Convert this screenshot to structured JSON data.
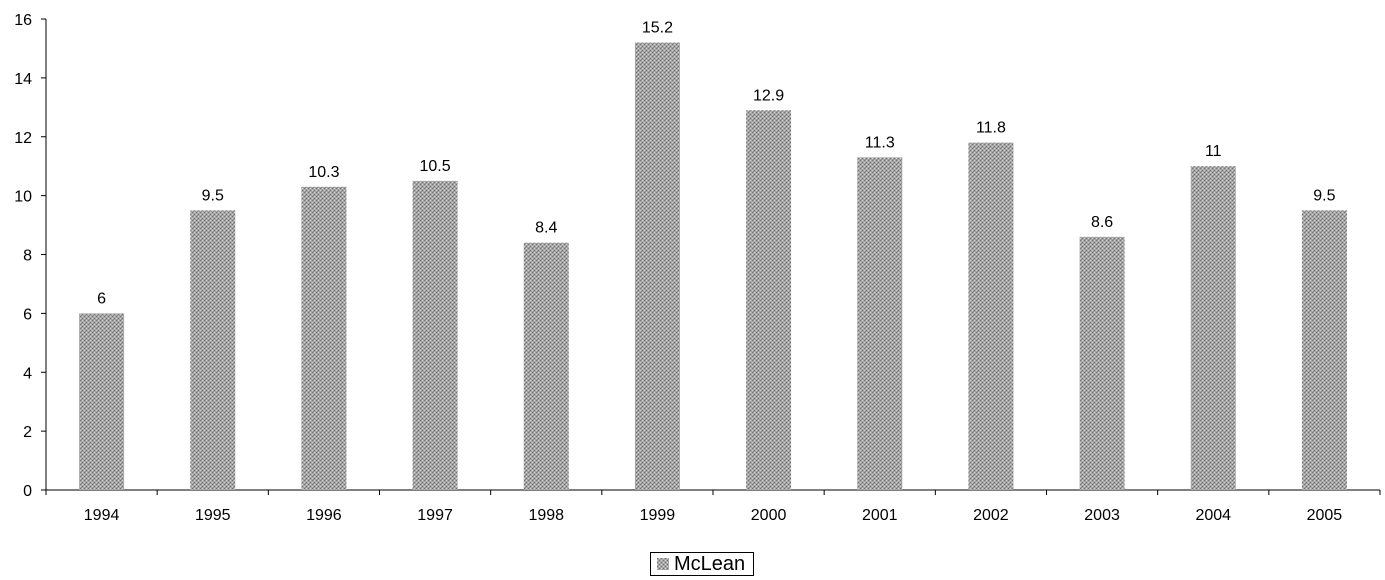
{
  "chart_data": {
    "type": "bar",
    "categories": [
      "1994",
      "1995",
      "1996",
      "1997",
      "1998",
      "1999",
      "2000",
      "2001",
      "2002",
      "2003",
      "2004",
      "2005"
    ],
    "series": [
      {
        "name": "McLean",
        "values": [
          6,
          9.5,
          10.3,
          10.5,
          8.4,
          15.2,
          12.9,
          11.3,
          11.8,
          8.6,
          11,
          9.5
        ],
        "data_labels": [
          "6",
          "9.5",
          "10.3",
          "10.5",
          "8.4",
          "15.2",
          "12.9",
          "11.3",
          "11.8",
          "8.6",
          "11",
          "9.5"
        ]
      }
    ],
    "title": "",
    "xlabel": "",
    "ylabel": "",
    "ylim": [
      0,
      16
    ],
    "yticks": [
      0,
      2,
      4,
      6,
      8,
      10,
      12,
      14,
      16
    ],
    "grid": false,
    "legend": "bottom-center",
    "bar_color": "#a6a6a6"
  }
}
